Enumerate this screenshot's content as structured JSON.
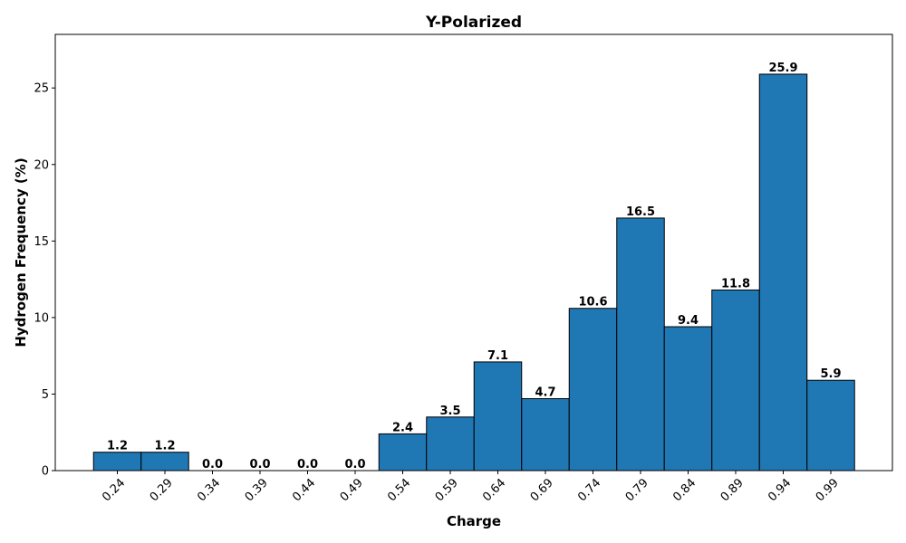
{
  "chart_data": {
    "type": "bar",
    "title": "Y-Polarized",
    "xlabel": "Charge",
    "ylabel": "Hydrogen Frequency (%)",
    "categories": [
      "0.24",
      "0.29",
      "0.34",
      "0.39",
      "0.44",
      "0.49",
      "0.54",
      "0.59",
      "0.64",
      "0.69",
      "0.74",
      "0.79",
      "0.84",
      "0.89",
      "0.94",
      "0.99"
    ],
    "values": [
      1.2,
      1.2,
      0.0,
      0.0,
      0.0,
      0.0,
      2.4,
      3.5,
      7.1,
      4.7,
      10.6,
      16.5,
      9.4,
      11.8,
      25.9,
      5.9
    ],
    "data_labels": [
      "1.2",
      "1.2",
      "0.0",
      "0.0",
      "0.0",
      "0.0",
      "2.4",
      "3.5",
      "7.1",
      "4.7",
      "10.6",
      "16.5",
      "9.4",
      "11.8",
      "25.9",
      "5.9"
    ],
    "yticks": [
      0,
      5,
      10,
      15,
      20,
      25
    ],
    "ytick_labels": [
      "0",
      "5",
      "10",
      "15",
      "20",
      "25"
    ],
    "ylim": [
      0,
      28.5
    ],
    "grid": false,
    "bar_color": "#1f77b4",
    "edge_color": "#000000"
  }
}
